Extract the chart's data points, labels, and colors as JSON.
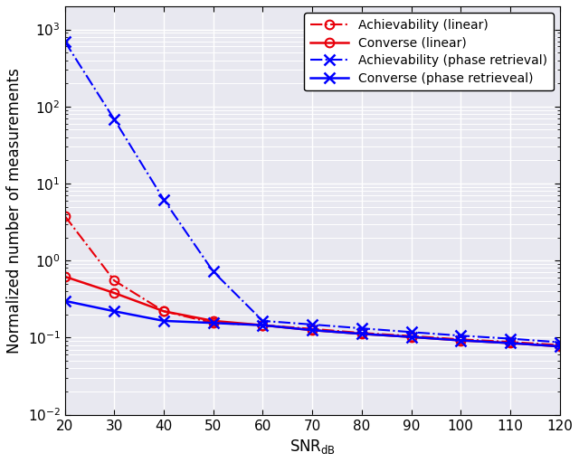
{
  "snr_db": [
    20,
    30,
    40,
    50,
    60,
    70,
    80,
    90,
    100,
    110,
    120
  ],
  "achievability_linear": [
    3.8,
    0.55,
    0.22,
    0.155,
    0.145,
    0.13,
    0.115,
    0.105,
    0.095,
    0.088,
    0.08
  ],
  "converse_linear": [
    0.62,
    0.38,
    0.22,
    0.165,
    0.145,
    0.125,
    0.112,
    0.102,
    0.092,
    0.085,
    0.077
  ],
  "achievability_phase": [
    700,
    68,
    6.2,
    0.72,
    0.165,
    0.148,
    0.132,
    0.118,
    0.106,
    0.097,
    0.087
  ],
  "converse_phase": [
    0.3,
    0.22,
    0.165,
    0.155,
    0.145,
    0.125,
    0.112,
    0.102,
    0.092,
    0.085,
    0.077
  ],
  "color_red": "#e8000a",
  "color_blue": "#0000ff",
  "ylabel": "Normalized number of measurements",
  "xlabel_latex": "SNR$_{\\rm dB}$",
  "ylim_low": 0.01,
  "ylim_high": 2000,
  "xlim_low": 20,
  "xlim_high": 120,
  "xticks": [
    20,
    30,
    40,
    50,
    60,
    70,
    80,
    90,
    100,
    110,
    120
  ],
  "legend_labels": [
    "Achievability (linear)",
    "Converse (linear)",
    "Achievability (phase retrieval)",
    "Converse (phase retrieveal)"
  ],
  "background_color": "#e8e8f0",
  "grid_color": "#ffffff",
  "figsize": [
    6.4,
    5.11
  ],
  "dpi": 100
}
